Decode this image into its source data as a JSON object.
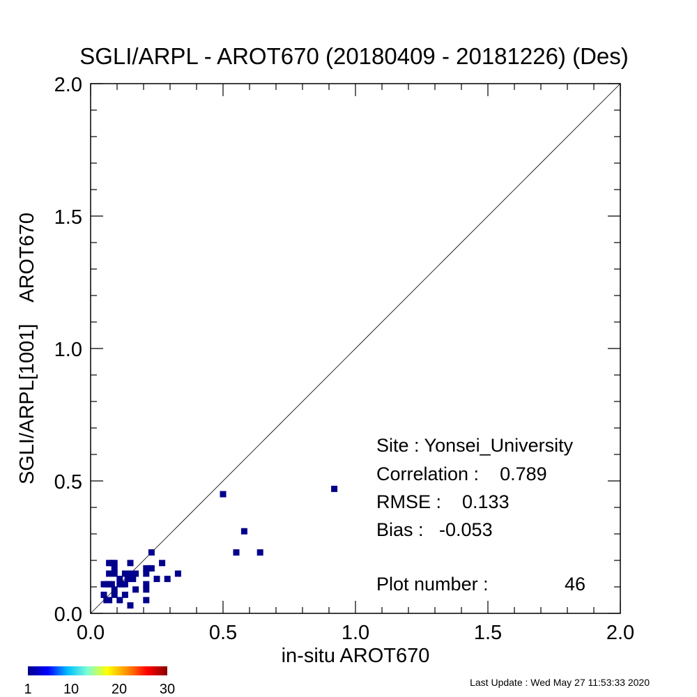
{
  "chart_data": {
    "type": "scatter",
    "title": "SGLI/ARPL - AROT670 (20180409 - 20181226) (Des)",
    "xlabel": "in-situ AROT670",
    "ylabel": "SGLI/ARPL[1001]    AROT670",
    "xlim": [
      0.0,
      2.0
    ],
    "ylim": [
      0.0,
      2.0
    ],
    "x_tick_labels": [
      "0.0",
      "0.5",
      "1.0",
      "1.5",
      "2.0"
    ],
    "y_tick_labels": [
      "0.0",
      "0.5",
      "1.0",
      "1.5",
      "2.0"
    ],
    "reference_line": "1:1",
    "marker_color": "#00008b",
    "points": [
      {
        "x": 0.05,
        "y": 0.07
      },
      {
        "x": 0.06,
        "y": 0.05
      },
      {
        "x": 0.07,
        "y": 0.05
      },
      {
        "x": 0.06,
        "y": 0.11
      },
      {
        "x": 0.05,
        "y": 0.11
      },
      {
        "x": 0.07,
        "y": 0.11
      },
      {
        "x": 0.08,
        "y": 0.11
      },
      {
        "x": 0.07,
        "y": 0.15
      },
      {
        "x": 0.09,
        "y": 0.15
      },
      {
        "x": 0.07,
        "y": 0.19
      },
      {
        "x": 0.08,
        "y": 0.19
      },
      {
        "x": 0.09,
        "y": 0.19
      },
      {
        "x": 0.09,
        "y": 0.17
      },
      {
        "x": 0.09,
        "y": 0.07
      },
      {
        "x": 0.09,
        "y": 0.09
      },
      {
        "x": 0.11,
        "y": 0.05
      },
      {
        "x": 0.11,
        "y": 0.11
      },
      {
        "x": 0.11,
        "y": 0.13
      },
      {
        "x": 0.12,
        "y": 0.11
      },
      {
        "x": 0.13,
        "y": 0.15
      },
      {
        "x": 0.13,
        "y": 0.07
      },
      {
        "x": 0.14,
        "y": 0.13
      },
      {
        "x": 0.15,
        "y": 0.15
      },
      {
        "x": 0.15,
        "y": 0.03
      },
      {
        "x": 0.15,
        "y": 0.19
      },
      {
        "x": 0.16,
        "y": 0.13
      },
      {
        "x": 0.17,
        "y": 0.15
      },
      {
        "x": 0.17,
        "y": 0.09
      },
      {
        "x": 0.21,
        "y": 0.05
      },
      {
        "x": 0.21,
        "y": 0.09
      },
      {
        "x": 0.21,
        "y": 0.11
      },
      {
        "x": 0.21,
        "y": 0.15
      },
      {
        "x": 0.21,
        "y": 0.17
      },
      {
        "x": 0.22,
        "y": 0.17
      },
      {
        "x": 0.23,
        "y": 0.17
      },
      {
        "x": 0.23,
        "y": 0.23
      },
      {
        "x": 0.25,
        "y": 0.13
      },
      {
        "x": 0.27,
        "y": 0.19
      },
      {
        "x": 0.29,
        "y": 0.13
      },
      {
        "x": 0.33,
        "y": 0.15
      },
      {
        "x": 0.5,
        "y": 0.45
      },
      {
        "x": 0.55,
        "y": 0.23
      },
      {
        "x": 0.58,
        "y": 0.31
      },
      {
        "x": 0.64,
        "y": 0.23
      },
      {
        "x": 0.92,
        "y": 0.47
      },
      {
        "x": 0.13,
        "y": 0.11
      }
    ],
    "colorbar": {
      "tick_labels": [
        "1",
        "10",
        "20",
        "30"
      ],
      "colors": [
        "#00008b",
        "#0000ff",
        "#00bfff",
        "#7fffd4",
        "#ffff00",
        "#ff8c00",
        "#ff0000",
        "#8b0000"
      ]
    }
  },
  "stats": {
    "site": "Site : Yonsei_University",
    "correlation": "Correlation :    0.789",
    "rmse": "RMSE :    0.133",
    "bias": "Bias :   -0.053",
    "plot_number_label": "Plot number :",
    "plot_number_value": "46"
  },
  "footer": {
    "last_update": "Last Update : Wed May 27 11:53:33 2020"
  }
}
